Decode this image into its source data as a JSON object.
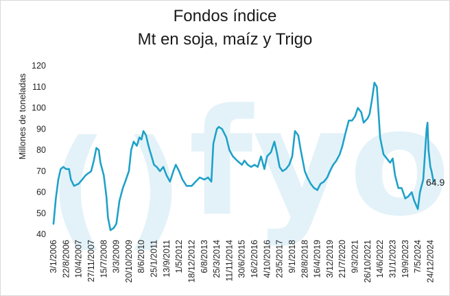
{
  "chart_data": {
    "type": "line",
    "title": "Fondos índice",
    "subtitle": "Mt en soja, maíz y Trigo",
    "ylabel": "Millones de toneladas",
    "xlabel": "",
    "ylim": [
      40,
      120
    ],
    "yticks": [
      40,
      50,
      60,
      70,
      80,
      90,
      100,
      110,
      120
    ],
    "grid": false,
    "legend": "none",
    "color": "#1ea1c9",
    "watermark": "fyo",
    "end_label": "64.9",
    "xticks": [
      "3/1/2006",
      "22/8/2006",
      "10/4/2007",
      "27/11/2007",
      "15/7/2008",
      "3/3/2009",
      "20/10/2009",
      "8/6/2010",
      "25/1/2011",
      "13/9/2011",
      "1/5/2012",
      "18/12/2012",
      "6/8/2013",
      "25/3/2014",
      "11/11/2014",
      "30/6/2015",
      "16/2/2016",
      "4/10/2016",
      "23/5/2017",
      "9/1/2018",
      "28/8/2018",
      "16/4/2019",
      "3/12/2019",
      "21/7/2020",
      "9/3/2021",
      "26/10/2021",
      "14/6/2022",
      "31/1/2023",
      "19/9/2023",
      "7/5/2024",
      "24/12/2024"
    ],
    "series": [
      {
        "points": [
          [
            "2006-01-03",
            45
          ],
          [
            "2006-02-15",
            57
          ],
          [
            "2006-04-01",
            66
          ],
          [
            "2006-05-15",
            71
          ],
          [
            "2006-07-01",
            72
          ],
          [
            "2006-08-22",
            71
          ],
          [
            "2006-10-15",
            71
          ],
          [
            "2006-11-20",
            66
          ],
          [
            "2007-01-15",
            63
          ],
          [
            "2007-04-10",
            64
          ],
          [
            "2007-06-15",
            66
          ],
          [
            "2007-08-15",
            68
          ],
          [
            "2007-11-27",
            70
          ],
          [
            "2008-01-15",
            75
          ],
          [
            "2008-03-01",
            81
          ],
          [
            "2008-04-15",
            80
          ],
          [
            "2008-05-15",
            74
          ],
          [
            "2008-07-15",
            68
          ],
          [
            "2008-09-01",
            58
          ],
          [
            "2008-10-01",
            48
          ],
          [
            "2008-11-15",
            42
          ],
          [
            "2009-01-15",
            43
          ],
          [
            "2009-03-03",
            45
          ],
          [
            "2009-05-01",
            56
          ],
          [
            "2009-07-01",
            62
          ],
          [
            "2009-08-15",
            65
          ],
          [
            "2009-10-20",
            70
          ],
          [
            "2009-12-01",
            80
          ],
          [
            "2010-01-15",
            84
          ],
          [
            "2010-03-15",
            82
          ],
          [
            "2010-05-01",
            86
          ],
          [
            "2010-06-08",
            85
          ],
          [
            "2010-07-15",
            89
          ],
          [
            "2010-09-01",
            87
          ],
          [
            "2010-10-15",
            82
          ],
          [
            "2010-12-01",
            78
          ],
          [
            "2011-01-25",
            73
          ],
          [
            "2011-03-15",
            72
          ],
          [
            "2011-05-15",
            70
          ],
          [
            "2011-07-15",
            72
          ],
          [
            "2011-09-13",
            68
          ],
          [
            "2011-11-15",
            65
          ],
          [
            "2012-01-15",
            70
          ],
          [
            "2012-03-01",
            73
          ],
          [
            "2012-05-01",
            70
          ],
          [
            "2012-07-01",
            66
          ],
          [
            "2012-09-15",
            63
          ],
          [
            "2012-12-18",
            63
          ],
          [
            "2013-03-01",
            65
          ],
          [
            "2013-05-15",
            67
          ],
          [
            "2013-08-06",
            66
          ],
          [
            "2013-10-15",
            67
          ],
          [
            "2013-12-15",
            65
          ],
          [
            "2014-01-20",
            83
          ],
          [
            "2014-03-25",
            90
          ],
          [
            "2014-05-01",
            91
          ],
          [
            "2014-07-01",
            90
          ],
          [
            "2014-09-15",
            86
          ],
          [
            "2014-11-11",
            80
          ],
          [
            "2015-01-15",
            77
          ],
          [
            "2015-04-01",
            75
          ],
          [
            "2015-06-30",
            73
          ],
          [
            "2015-08-15",
            75
          ],
          [
            "2015-10-15",
            73
          ],
          [
            "2015-12-15",
            72
          ],
          [
            "2016-02-16",
            73
          ],
          [
            "2016-04-15",
            72
          ],
          [
            "2016-06-15",
            77
          ],
          [
            "2016-08-15",
            71
          ],
          [
            "2016-10-04",
            77
          ],
          [
            "2016-12-15",
            79
          ],
          [
            "2017-02-15",
            84
          ],
          [
            "2017-04-01",
            79
          ],
          [
            "2017-05-23",
            72
          ],
          [
            "2017-07-15",
            70
          ],
          [
            "2017-09-15",
            71
          ],
          [
            "2017-11-15",
            73
          ],
          [
            "2018-01-09",
            77
          ],
          [
            "2018-03-01",
            89
          ],
          [
            "2018-05-01",
            87
          ],
          [
            "2018-06-15",
            80
          ],
          [
            "2018-08-28",
            70
          ],
          [
            "2018-10-15",
            67
          ],
          [
            "2018-12-15",
            64
          ],
          [
            "2019-02-15",
            62
          ],
          [
            "2019-04-16",
            61
          ],
          [
            "2019-06-15",
            64
          ],
          [
            "2019-08-15",
            65
          ],
          [
            "2019-10-15",
            67
          ],
          [
            "2019-12-03",
            70
          ],
          [
            "2020-02-01",
            73
          ],
          [
            "2020-04-01",
            75
          ],
          [
            "2020-06-01",
            78
          ],
          [
            "2020-07-21",
            82
          ],
          [
            "2020-09-15",
            88
          ],
          [
            "2020-11-15",
            94
          ],
          [
            "2021-01-15",
            94
          ],
          [
            "2021-03-09",
            96
          ],
          [
            "2021-05-01",
            100
          ],
          [
            "2021-07-01",
            98
          ],
          [
            "2021-08-15",
            93
          ],
          [
            "2021-10-26",
            95
          ],
          [
            "2021-12-01",
            97
          ],
          [
            "2022-01-15",
            104
          ],
          [
            "2022-03-01",
            112
          ],
          [
            "2022-04-15",
            110
          ],
          [
            "2022-06-14",
            86
          ],
          [
            "2022-08-15",
            78
          ],
          [
            "2022-10-15",
            76
          ],
          [
            "2022-12-15",
            74
          ],
          [
            "2023-01-31",
            76
          ],
          [
            "2023-03-15",
            68
          ],
          [
            "2023-05-15",
            62
          ],
          [
            "2023-07-15",
            62
          ],
          [
            "2023-09-19",
            57
          ],
          [
            "2023-11-15",
            58
          ],
          [
            "2024-01-15",
            60
          ],
          [
            "2024-03-01",
            56
          ],
          [
            "2024-05-07",
            52
          ],
          [
            "2024-06-15",
            60
          ],
          [
            "2024-08-15",
            66
          ],
          [
            "2024-10-15",
            90
          ],
          [
            "2024-11-01",
            93
          ],
          [
            "2024-11-20",
            80
          ],
          [
            "2024-12-24",
            72
          ],
          [
            "2025-01-15",
            70
          ],
          [
            "2025-02-20",
            64.9
          ]
        ]
      }
    ]
  }
}
